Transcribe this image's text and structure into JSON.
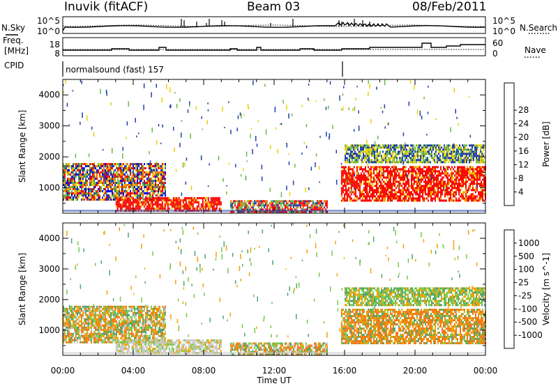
{
  "header": {
    "station": "Inuvik (fitACF)",
    "beam": "Beam 03",
    "date": "08/Feb/2011"
  },
  "top_panels": {
    "left_labels": [
      "N.Sky",
      "Freq.",
      "[MHz]",
      "CPID"
    ],
    "right_labels": [
      "N.Search",
      "Nave"
    ],
    "nsky_ticks": [
      "10^5",
      "10^0"
    ],
    "nsearch_ticks": [
      "10^5",
      "10^0"
    ],
    "freq_ticks": [
      "18",
      "8"
    ],
    "nave_ticks": [
      "60",
      "0"
    ],
    "cpid_text": "normalsound (fast) 157"
  },
  "chart_data": [
    {
      "type": "heatmap",
      "name": "power",
      "xlabel": "",
      "ylabel": "Slant Range [km]",
      "xlim": [
        0,
        24
      ],
      "ylim": [
        180,
        4500
      ],
      "yticks": [
        "1000",
        "2000",
        "3000",
        "4000"
      ],
      "colorbar": {
        "title": "Power [dB]",
        "ticks": [
          "4",
          "8",
          "12",
          "16",
          "20",
          "24",
          "28"
        ],
        "colors": [
          "#0000ff",
          "#1f3fa8",
          "#3f7f60",
          "#6ab84a",
          "#e8d000",
          "#f5a000",
          "#f07000",
          "#e81000",
          "#ff0000"
        ]
      },
      "echo_regions": [
        {
          "t0": 0.0,
          "t1": 5.8,
          "r0": 600,
          "r1": 1800,
          "level": "mixed"
        },
        {
          "t0": 3.0,
          "t1": 9.0,
          "r0": 250,
          "r1": 700,
          "level": "strong"
        },
        {
          "t0": 9.5,
          "t1": 15.0,
          "r0": 250,
          "r1": 600,
          "level": "medium"
        },
        {
          "t0": 15.8,
          "t1": 24.0,
          "r0": 600,
          "r1": 1700,
          "level": "strong"
        },
        {
          "t0": 16.0,
          "t1": 24.0,
          "r0": 1800,
          "r1": 2400,
          "level": "weak"
        }
      ]
    },
    {
      "type": "heatmap",
      "name": "velocity",
      "xlabel": "Time UT",
      "ylabel": "Slant Range [km]",
      "xlim": [
        0,
        24
      ],
      "ylim": [
        180,
        4500
      ],
      "xticks": [
        "00:00",
        "04:00",
        "08:00",
        "12:00",
        "16:00",
        "20:00",
        "00:00"
      ],
      "yticks": [
        "1000",
        "2000",
        "3000",
        "4000"
      ],
      "colorbar": {
        "title": "Velocity [m s^-1]",
        "ticks": [
          "1000",
          "500",
          "100",
          "25",
          "-25",
          "-100",
          "-500",
          "-1000"
        ],
        "colors": [
          "#1a3cb4",
          "#2f7f6e",
          "#4fa46e",
          "#78c84a",
          "#c8c8c8",
          "#f2a200",
          "#f07a10",
          "#f04010",
          "#ff0000"
        ]
      },
      "echo_regions": [
        {
          "t0": 0.0,
          "t1": 5.8,
          "r0": 600,
          "r1": 1800,
          "level": "mixed"
        },
        {
          "t0": 3.0,
          "t1": 9.0,
          "r0": 250,
          "r1": 700,
          "level": "gray"
        },
        {
          "t0": 9.5,
          "t1": 15.0,
          "r0": 250,
          "r1": 600,
          "level": "mixed"
        },
        {
          "t0": 15.8,
          "t1": 24.0,
          "r0": 600,
          "r1": 1700,
          "level": "orange"
        },
        {
          "t0": 16.0,
          "t1": 24.0,
          "r0": 1800,
          "r1": 2400,
          "level": "weak"
        }
      ]
    }
  ]
}
